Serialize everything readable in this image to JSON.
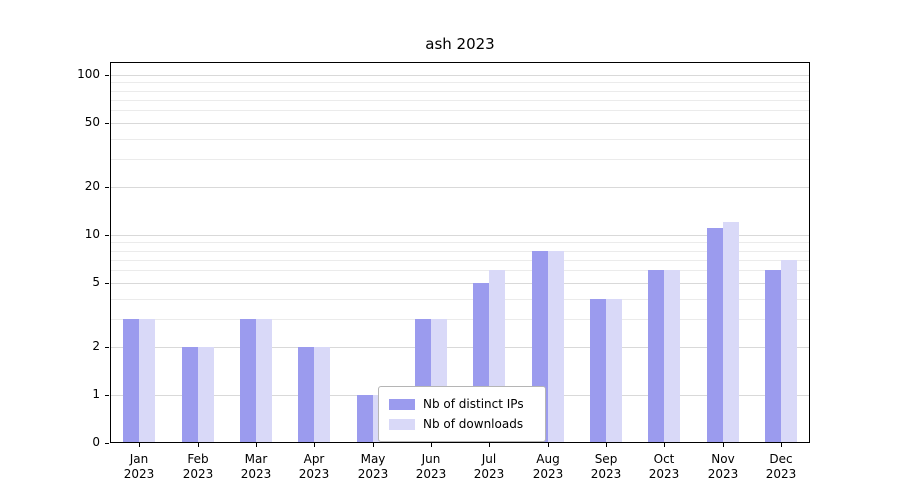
{
  "chart_data": {
    "type": "bar",
    "title": "ash 2023",
    "categories": [
      "Jan",
      "Feb",
      "Mar",
      "Apr",
      "May",
      "Jun",
      "Jul",
      "Aug",
      "Sep",
      "Oct",
      "Nov",
      "Dec"
    ],
    "year": "2023",
    "series": [
      {
        "name": "Nb of distinct IPs",
        "color": "#9b9bee",
        "values": [
          3,
          2,
          3,
          2,
          1,
          3,
          5,
          8,
          4,
          6,
          11,
          6
        ]
      },
      {
        "name": "Nb of downloads",
        "color": "#d9d9f8",
        "values": [
          3,
          2,
          3,
          2,
          1,
          3,
          6,
          8,
          4,
          6,
          12,
          7
        ]
      }
    ],
    "xlabel": "",
    "ylabel": "",
    "yscale": "symlog",
    "ylim": [
      0,
      120
    ],
    "yticks_major": [
      0,
      1,
      2,
      5,
      10,
      20,
      50,
      100
    ],
    "yticks_minor": [
      3,
      4,
      6,
      7,
      8,
      9,
      30,
      40,
      60,
      70,
      80,
      90
    ],
    "grid": "horizontal",
    "legend_position": "lower-center-inside"
  }
}
